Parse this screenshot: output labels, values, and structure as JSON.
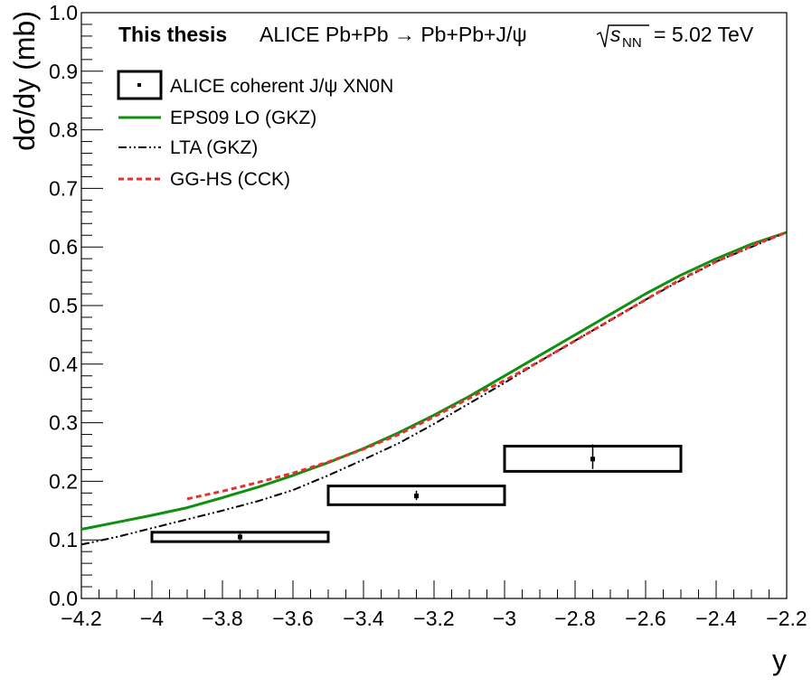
{
  "chart_data": {
    "type": "line",
    "header": {
      "bold": "This thesis",
      "process": "ALICE Pb+Pb → Pb+Pb+J/ψ",
      "energy_symbol": "s",
      "energy_subscript": "NN",
      "energy_value": "= 5.02 TeV"
    },
    "xlabel": "y",
    "ylabel": "dσ/dy (mb)",
    "xlim": [
      -4.2,
      -2.2
    ],
    "ylim": [
      0.0,
      1.0
    ],
    "x_ticks": [
      "−4.2",
      "−4",
      "−3.8",
      "−3.6",
      "−3.4",
      "−3.2",
      "−3",
      "−2.8",
      "−2.6",
      "−2.4",
      "−2.2"
    ],
    "y_ticks": [
      "0.0",
      "0.1",
      "0.2",
      "0.3",
      "0.4",
      "0.5",
      "0.6",
      "0.7",
      "0.8",
      "0.9",
      "1.0"
    ],
    "legend_position": "top-left",
    "data_points": {
      "name": "ALICE coherent J/ψ XN0N",
      "points": [
        {
          "x": -3.75,
          "y": 0.105,
          "x_low": -4.0,
          "x_high": -3.5,
          "stat_low": 0.097,
          "stat_high": 0.113,
          "syst_low": 0.097,
          "syst_high": 0.113
        },
        {
          "x": -3.25,
          "y": 0.175,
          "x_low": -3.5,
          "x_high": -3.0,
          "stat_low": 0.168,
          "stat_high": 0.184,
          "syst_low": 0.16,
          "syst_high": 0.192
        },
        {
          "x": -2.75,
          "y": 0.238,
          "x_low": -3.0,
          "x_high": -2.5,
          "stat_low": 0.221,
          "stat_high": 0.263,
          "syst_low": 0.217,
          "syst_high": 0.26
        }
      ]
    },
    "series": [
      {
        "name": "EPS09 LO (GKZ)",
        "color": "#109010",
        "style": "solid",
        "x": [
          -4.2,
          -4.1,
          -4.0,
          -3.9,
          -3.8,
          -3.7,
          -3.6,
          -3.5,
          -3.4,
          -3.3,
          -3.2,
          -3.1,
          -3.0,
          -2.9,
          -2.8,
          -2.7,
          -2.6,
          -2.5,
          -2.4,
          -2.3,
          -2.2
        ],
        "y": [
          0.118,
          0.13,
          0.142,
          0.155,
          0.172,
          0.19,
          0.21,
          0.232,
          0.256,
          0.283,
          0.313,
          0.345,
          0.38,
          0.415,
          0.45,
          0.485,
          0.52,
          0.552,
          0.58,
          0.605,
          0.625
        ]
      },
      {
        "name": "LTA (GKZ)",
        "color": "#000000",
        "style": "dashdot",
        "x": [
          -4.2,
          -4.1,
          -4.0,
          -3.9,
          -3.8,
          -3.7,
          -3.6,
          -3.5,
          -3.4,
          -3.3,
          -3.2,
          -3.1,
          -3.0,
          -2.9,
          -2.8,
          -2.7,
          -2.6,
          -2.5,
          -2.4,
          -2.3,
          -2.2
        ],
        "y": [
          0.092,
          0.105,
          0.12,
          0.135,
          0.15,
          0.166,
          0.185,
          0.21,
          0.237,
          0.265,
          0.298,
          0.333,
          0.368,
          0.405,
          0.44,
          0.475,
          0.51,
          0.543,
          0.575,
          0.6,
          0.625
        ]
      },
      {
        "name": "GG-HS (CCK)",
        "color": "#e83030",
        "style": "dashed",
        "x": [
          -3.9,
          -3.8,
          -3.7,
          -3.6,
          -3.5,
          -3.4,
          -3.3,
          -3.2,
          -3.1,
          -3.0,
          -2.9,
          -2.8,
          -2.7,
          -2.6,
          -2.5,
          -2.4,
          -2.3,
          -2.2
        ],
        "y": [
          0.17,
          0.183,
          0.198,
          0.214,
          0.233,
          0.255,
          0.28,
          0.31,
          0.342,
          0.372,
          0.405,
          0.44,
          0.475,
          0.51,
          0.545,
          0.575,
          0.602,
          0.625
        ]
      }
    ]
  }
}
